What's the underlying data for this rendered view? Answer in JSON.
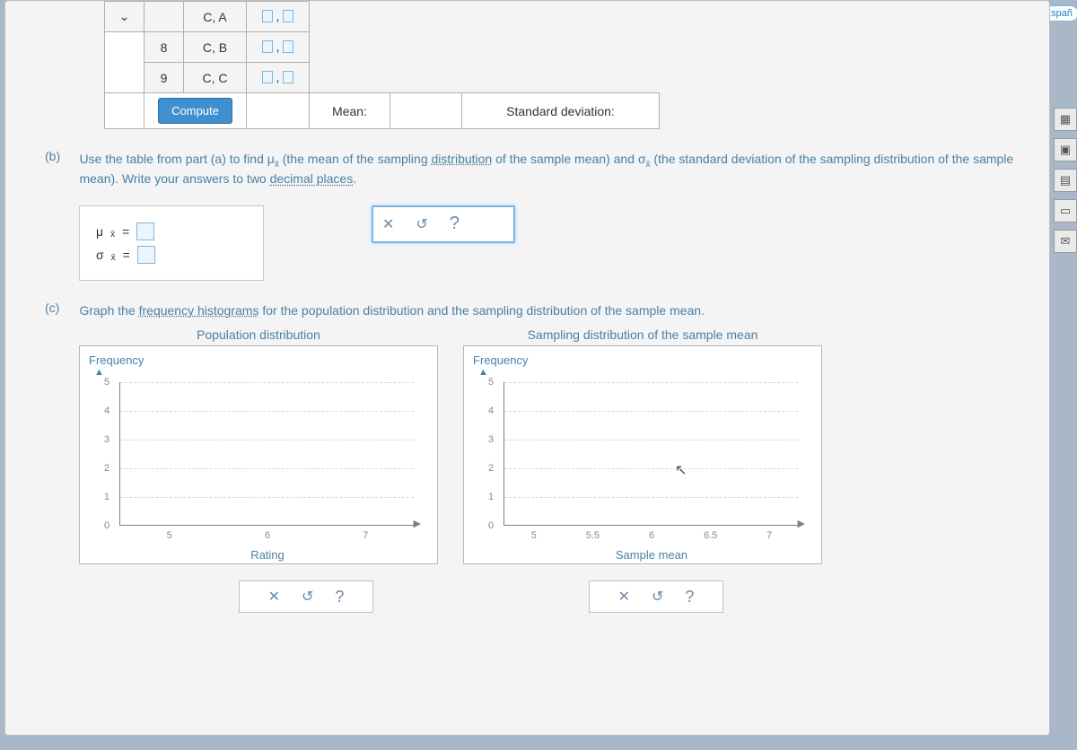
{
  "espan": "Españ",
  "table_a": {
    "rows": [
      {
        "idx": "",
        "label": "C, A",
        "chev": "⌄"
      },
      {
        "idx": "8",
        "label": "C, B",
        "chev": ""
      },
      {
        "idx": "9",
        "label": "C, C",
        "chev": ""
      }
    ],
    "compute_label": "Compute",
    "mean_label": "Mean:",
    "sd_label": "Standard deviation:"
  },
  "part_b": {
    "label": "(b)",
    "text_pre": "Use the table from part (a) to find ",
    "mu": "μ",
    "sub": "x̄",
    "text_mid1": " (the mean of the sampling ",
    "dist_word": "distribution",
    "text_mid2": " of the sample mean) and ",
    "sigma": "σ",
    "text_mid3": " (the standard deviation of the sampling distribution of the sample mean). Write your answers to two ",
    "dec_word": "decimal places",
    "text_end": ".",
    "eq_mu": "μ",
    "eq_sub": "x̄",
    "eq": "=",
    "eq_sigma": "σ",
    "tool_x": "✕",
    "tool_reset": "↺",
    "tool_help": "?"
  },
  "part_c": {
    "label": "(c)",
    "text_pre": "Graph the ",
    "fh_word": "frequency histograms",
    "text_end": " for the population distribution and the sampling distribution of the sample mean.",
    "chart1": {
      "title": "Population distribution",
      "ylabel": "Frequency",
      "xlabel": "Rating",
      "yticks": [
        0,
        1,
        2,
        3,
        4,
        5
      ],
      "ylim": [
        0,
        5
      ],
      "xticks": [
        5,
        6,
        7
      ],
      "xlim": [
        4.5,
        7.5
      ],
      "grid_color": "#d8d8d8",
      "axis_color": "#808080",
      "tick_fontsize": 11
    },
    "chart2": {
      "title": "Sampling distribution of the sample mean",
      "ylabel": "Frequency",
      "xlabel": "Sample mean",
      "yticks": [
        0,
        1,
        2,
        3,
        4,
        5
      ],
      "ylim": [
        0,
        5
      ],
      "xticks": [
        5,
        5.5,
        6,
        6.5,
        7
      ],
      "xlim": [
        4.75,
        7.25
      ],
      "grid_color": "#d8d8d8",
      "axis_color": "#808080",
      "tick_fontsize": 11
    },
    "tool_x": "✕",
    "tool_reset": "↺",
    "tool_help": "?"
  },
  "side_tools": [
    "▦",
    "▣",
    "▤",
    "▭",
    "✉"
  ]
}
